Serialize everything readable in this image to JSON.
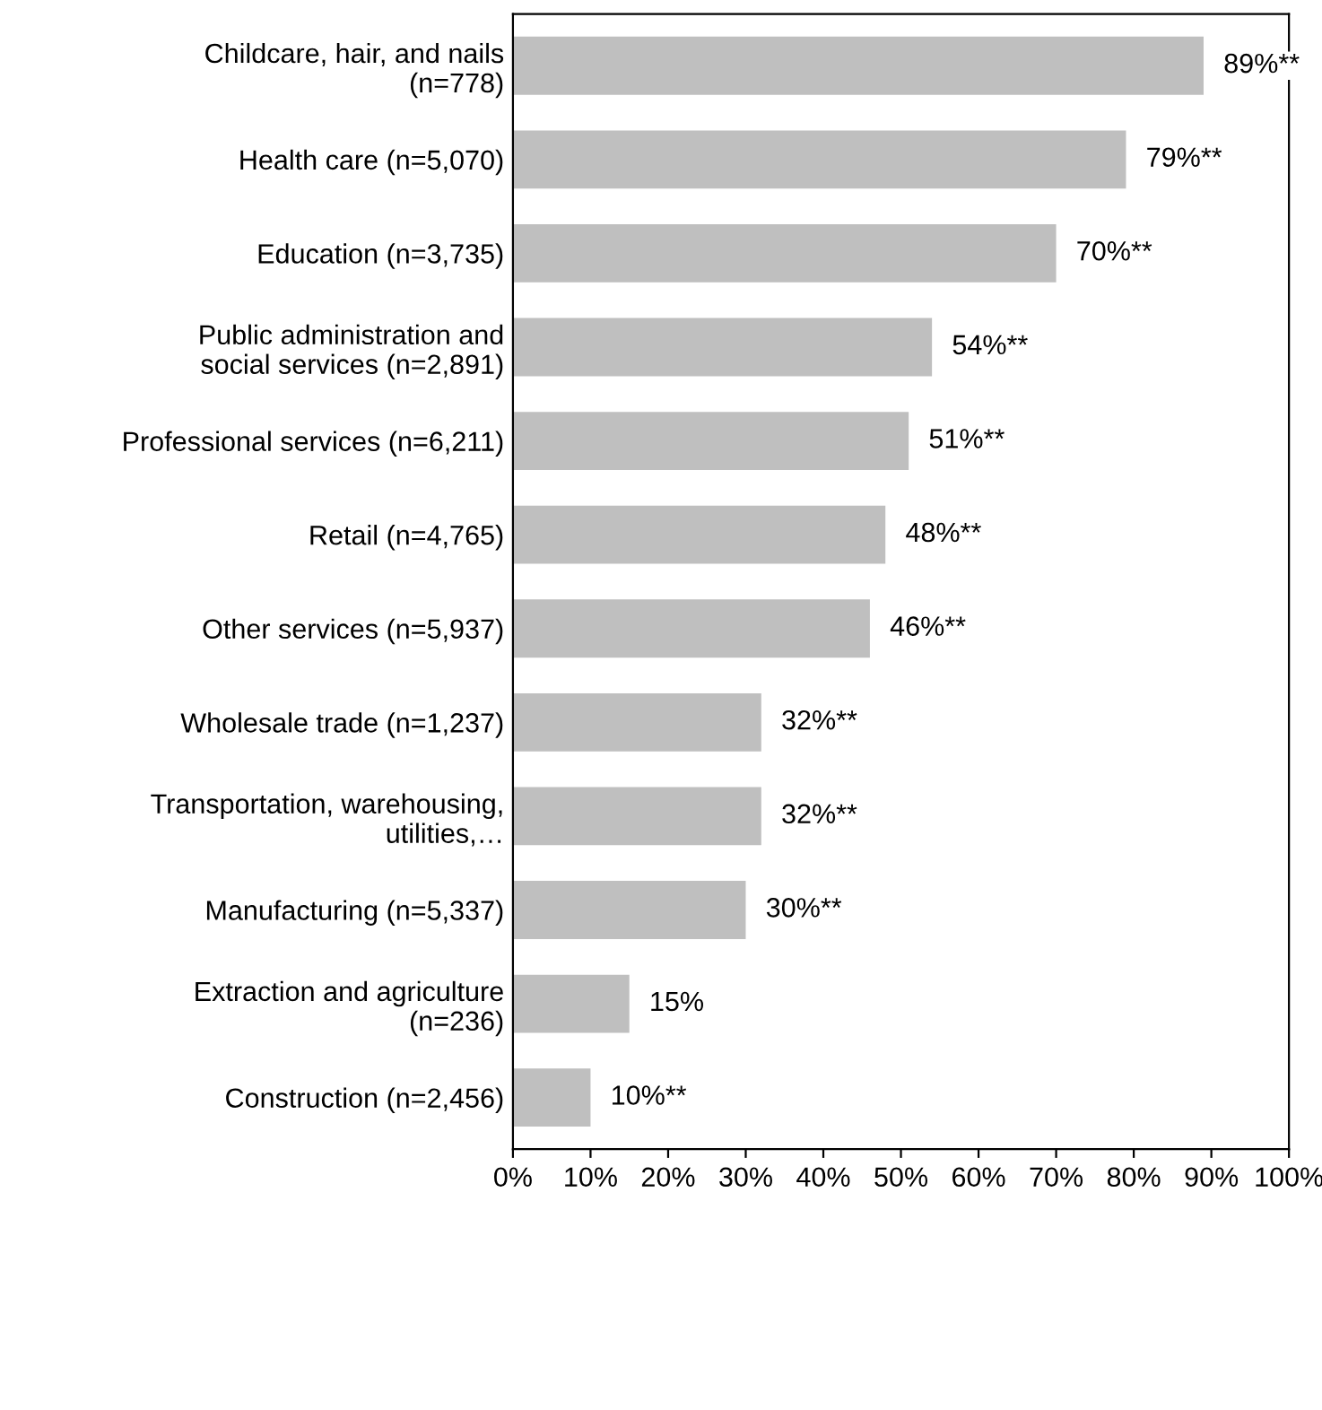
{
  "chart_data": {
    "type": "bar",
    "orientation": "horizontal",
    "categories": [
      "Childcare, hair, and nails (n=778)",
      "Health care (n=5,070)",
      "Education (n=3,735)",
      "Public administration and social services (n=2,891)",
      "Professional services (n=6,211)",
      "Retail (n=4,765)",
      "Other services (n=5,937)",
      "Wholesale trade (n=1,237)",
      "Transportation, warehousing, utilities,…",
      "Manufacturing (n=5,337)",
      "Extraction and agriculture (n=236)",
      "Construction (n=2,456)"
    ],
    "values": [
      89,
      79,
      70,
      54,
      51,
      48,
      46,
      32,
      32,
      30,
      15,
      10
    ],
    "value_labels": [
      "89%**",
      "79%**",
      "70%**",
      "54%**",
      "51%**",
      "48%**",
      "46%**",
      "32%**",
      "32%**",
      "30%**",
      "15%",
      "10%**"
    ],
    "color": "#bfbfbf",
    "xlim": [
      0,
      100
    ],
    "xticks": [
      {
        "value": 0,
        "label": "0%"
      },
      {
        "value": 10,
        "label": "10%"
      },
      {
        "value": 20,
        "label": "20%"
      },
      {
        "value": 30,
        "label": "30%"
      },
      {
        "value": 40,
        "label": "40%"
      },
      {
        "value": 50,
        "label": "50%"
      },
      {
        "value": 60,
        "label": "60%"
      },
      {
        "value": 70,
        "label": "70%"
      },
      {
        "value": 80,
        "label": "80%"
      },
      {
        "value": 90,
        "label": "90%"
      },
      {
        "value": 100,
        "label": "100%"
      }
    ],
    "grid": false
  }
}
